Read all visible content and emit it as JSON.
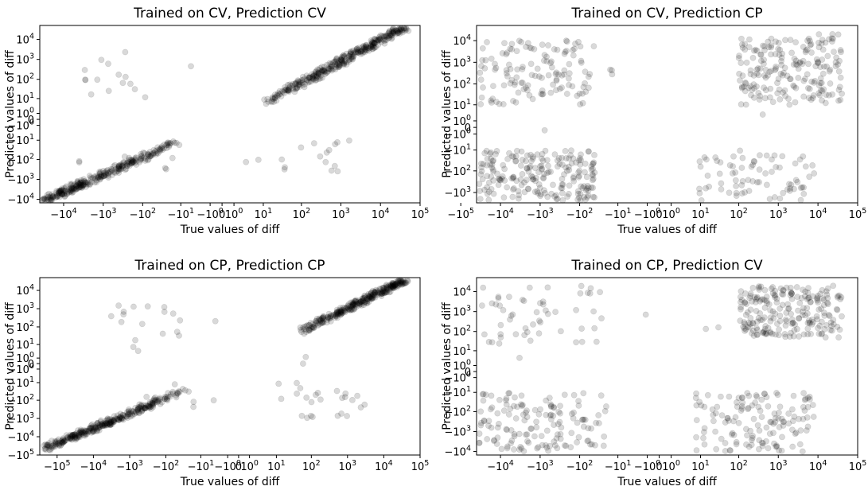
{
  "colors": {
    "point": "#000000",
    "frame": "#000000",
    "background": "#ffffff"
  },
  "chart_data": [
    {
      "type": "scatter",
      "title": "Trained on CV, Prediction CV",
      "xlabel": "True values of diff",
      "ylabel": "Predicted values of diff",
      "x_scale": "symlog",
      "y_scale": "symlog",
      "xticks": [
        "-10^4",
        "-10^3",
        "-10^2",
        "-10^1",
        "-10^0",
        "0",
        "10^0",
        "10^1",
        "10^2",
        "10^3",
        "10^4",
        "10^5"
      ],
      "yticks": [
        "10^4",
        "10^3",
        "10^2",
        "10^1",
        "10^0",
        "0",
        "-10^0",
        "-10^1",
        "-10^2",
        "-10^3",
        "-10^4"
      ],
      "xlim": [
        -40000,
        100000
      ],
      "ylim": [
        -15000,
        50000
      ],
      "marker": "circle",
      "marker_alpha": 0.15,
      "grid": false,
      "clusters": [
        {
          "x_range": [
            10,
            40000
          ],
          "y_range": [
            5,
            40000
          ],
          "n": 360,
          "trend": "diagonal"
        },
        {
          "x_range": [
            -40000,
            -10
          ],
          "y_range": [
            -15000,
            -10
          ],
          "n": 320,
          "trend": "diagonal"
        },
        {
          "x_range": [
            -6000,
            -60
          ],
          "y_range": [
            10,
            3000
          ],
          "n": 15,
          "trend": "none"
        },
        {
          "x_range": [
            -6000,
            -2
          ],
          "y_range": [
            -1000,
            -10
          ],
          "n": 6,
          "trend": "none"
        },
        {
          "x_range": [
            30,
            3000
          ],
          "y_range": [
            -600,
            -10
          ],
          "n": 15,
          "trend": "none"
        },
        {
          "x_range": [
            -10,
            -3
          ],
          "y_range": [
            300,
            500
          ],
          "n": 1,
          "trend": "none"
        },
        {
          "x_range": [
            3,
            8
          ],
          "y_range": [
            -150,
            -80
          ],
          "n": 2,
          "trend": "none"
        }
      ]
    },
    {
      "type": "scatter",
      "title": "Trained on CV, Prediction CP",
      "xlabel": "True values of diff",
      "ylabel": "Predicted values of diff",
      "x_scale": "symlog",
      "y_scale": "symlog",
      "xticks": [
        "-10^5",
        "-10^4",
        "-10^3",
        "-10^2",
        "-10^1",
        "-10^0",
        "0",
        "10^0",
        "10^1",
        "10^2",
        "10^3",
        "10^4",
        "10^5"
      ],
      "yticks": [
        "10^4",
        "10^3",
        "10^2",
        "10^1",
        "10^0",
        "0",
        "-10^0",
        "-10^1",
        "-10^2",
        "-10^3"
      ],
      "xlim": [
        -40000,
        100000
      ],
      "ylim": [
        -3000,
        50000
      ],
      "marker": "circle",
      "marker_alpha": 0.15,
      "grid": false,
      "clusters": [
        {
          "x_range": [
            -40000,
            -40
          ],
          "y_range": [
            10,
            10000
          ],
          "n": 130,
          "trend": "none"
        },
        {
          "x_range": [
            -40000,
            -40
          ],
          "y_range": [
            -3000,
            -10
          ],
          "n": 230,
          "trend": "none"
        },
        {
          "x_range": [
            100,
            40000
          ],
          "y_range": [
            10,
            20000
          ],
          "n": 200,
          "trend": "none"
        },
        {
          "x_range": [
            8,
            8000
          ],
          "y_range": [
            -3000,
            -10
          ],
          "n": 80,
          "trend": "none"
        },
        {
          "x_range": [
            -30,
            -8
          ],
          "y_range": [
            200,
            600
          ],
          "n": 3,
          "trend": "none"
        },
        {
          "x_range": [
            400,
            600
          ],
          "y_range": [
            2,
            4
          ],
          "n": 1,
          "trend": "none"
        },
        {
          "x_range": [
            -800,
            -600
          ],
          "y_range": [
            -0.5,
            -0.3
          ],
          "n": 1,
          "trend": "none"
        }
      ]
    },
    {
      "type": "scatter",
      "title": "Trained on CP, Prediction CP",
      "xlabel": "True values of diff",
      "ylabel": "Predicted values of diff",
      "x_scale": "symlog",
      "y_scale": "symlog",
      "xticks": [
        "-10^5",
        "-10^4",
        "-10^3",
        "-10^2",
        "-10^1",
        "-10^0",
        "0",
        "10^0",
        "10^1",
        "10^2",
        "10^3",
        "10^4",
        "10^5"
      ],
      "yticks": [
        "10^4",
        "10^3",
        "10^2",
        "10^1",
        "10^0",
        "0",
        "-10^0",
        "-10^1",
        "-10^2",
        "-10^3",
        "-10^4",
        "-10^5"
      ],
      "xlim": [
        -300000,
        100000
      ],
      "ylim": [
        -100000,
        50000
      ],
      "marker": "circle",
      "marker_alpha": 0.15,
      "grid": false,
      "clusters": [
        {
          "x_range": [
            50,
            40000
          ],
          "y_range": [
            50,
            40000
          ],
          "n": 330,
          "trend": "diagonal"
        },
        {
          "x_range": [
            -200000,
            -30
          ],
          "y_range": [
            -40000,
            -30
          ],
          "n": 330,
          "trend": "diagonal"
        },
        {
          "x_range": [
            -4000,
            -20
          ],
          "y_range": [
            3,
            2000
          ],
          "n": 18,
          "trend": "none"
        },
        {
          "x_range": [
            10,
            4000
          ],
          "y_range": [
            -1000,
            -10
          ],
          "n": 25,
          "trend": "none"
        },
        {
          "x_range": [
            -500,
            -3
          ],
          "y_range": [
            -300,
            -10
          ],
          "n": 8,
          "trend": "none"
        },
        {
          "x_range": [
            -8,
            -3
          ],
          "y_range": [
            200,
            300
          ],
          "n": 1,
          "trend": "none"
        },
        {
          "x_range": [
            50,
            70
          ],
          "y_range": [
            -2,
            2
          ],
          "n": 2,
          "trend": "none"
        }
      ]
    },
    {
      "type": "scatter",
      "title": "Trained on CP, Prediction CV",
      "xlabel": "True values of diff",
      "ylabel": "Predicted values of diff",
      "x_scale": "symlog",
      "y_scale": "symlog",
      "xticks": [
        "-10^4",
        "-10^3",
        "-10^2",
        "-10^1",
        "-10^0",
        "0",
        "10^0",
        "10^1",
        "10^2",
        "10^3",
        "10^4",
        "10^5"
      ],
      "yticks": [
        "10^4",
        "10^3",
        "10^2",
        "10^1",
        "10^0",
        "0",
        "-10^0",
        "-10^1",
        "-10^2",
        "-10^3",
        "-10^4"
      ],
      "xlim": [
        -40000,
        100000
      ],
      "ylim": [
        -15000,
        50000
      ],
      "marker": "circle",
      "marker_alpha": 0.15,
      "grid": false,
      "clusters": [
        {
          "x_range": [
            -40000,
            -20
          ],
          "y_range": [
            20,
            20000
          ],
          "n": 55,
          "trend": "none"
        },
        {
          "x_range": [
            -40000,
            -20
          ],
          "y_range": [
            -10000,
            -10
          ],
          "n": 150,
          "trend": "none"
        },
        {
          "x_range": [
            100,
            40000
          ],
          "y_range": [
            50,
            20000
          ],
          "n": 220,
          "trend": "none"
        },
        {
          "x_range": [
            7,
            8000
          ],
          "y_range": [
            -10000,
            -10
          ],
          "n": 140,
          "trend": "none"
        },
        {
          "x_range": [
            -3,
            -1
          ],
          "y_range": [
            500,
            800
          ],
          "n": 1,
          "trend": "none"
        },
        {
          "x_range": [
            10,
            30
          ],
          "y_range": [
            70,
            200
          ],
          "n": 2,
          "trend": "none"
        },
        {
          "x_range": [
            -5000,
            -3000
          ],
          "y_range": [
            2,
            4
          ],
          "n": 1,
          "trend": "none"
        }
      ]
    }
  ]
}
